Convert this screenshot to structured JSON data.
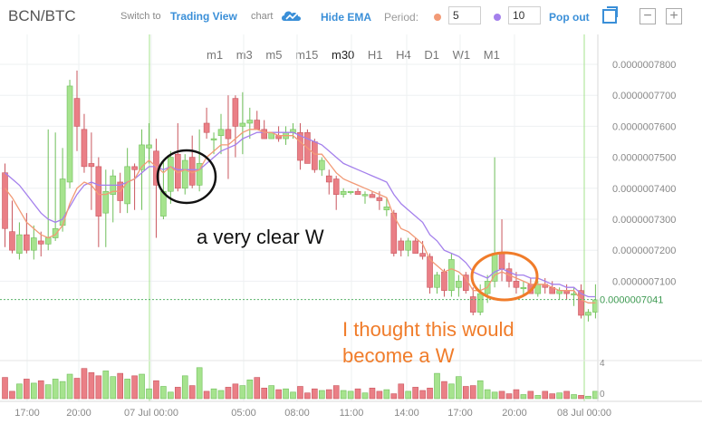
{
  "header": {
    "pair": "BCN/BTC",
    "switch_text": "Switch to",
    "tv_link": "Trading View",
    "tv_suffix": "chart",
    "hide_ema": "Hide EMA",
    "period_label": "Period:",
    "period_short": "5",
    "period_long": "10",
    "pop_out": "Pop out",
    "zoom_out": "−",
    "zoom_in": "+"
  },
  "timeframes": [
    "m1",
    "m3",
    "m5",
    "m15",
    "m30",
    "H1",
    "H4",
    "D1",
    "W1",
    "M1"
  ],
  "active_timeframe": "m30",
  "annotations": {
    "black_note": "a very clear W",
    "orange_note_line1": "I thought this would",
    "orange_note_line2": "become a W"
  },
  "colors": {
    "up": "#a6e38e",
    "down": "#ea7f86",
    "ema_short": "#f29a76",
    "ema_long": "#a480ec",
    "link": "#3a8fd8",
    "annotation_orange": "#f07c2a",
    "current_price_line": "#59b36a"
  },
  "chart_data": {
    "type": "candlestick",
    "y_ticks": [
      "0.0000007800",
      "0.0000007700",
      "0.0000007600",
      "0.0000007500",
      "0.0000007400",
      "0.0000007300",
      "0.0000007200",
      "0.0000007100"
    ],
    "current_price": "0.0000007041",
    "x_ticks": [
      "17:00",
      "20:00",
      "07 Jul 00:00",
      "05:00",
      "08:00",
      "11:00",
      "14:00",
      "17:00",
      "20:00",
      "08 Jul 00:00"
    ],
    "volume_ticks": [
      "4",
      "0"
    ],
    "ylim": [
      6.95e-07,
      7.87e-07
    ],
    "candles": [
      {
        "o": 7450,
        "h": 7480,
        "l": 7210,
        "c": 7270
      },
      {
        "o": 7260,
        "h": 7360,
        "l": 7190,
        "c": 7200
      },
      {
        "o": 7190,
        "h": 7290,
        "l": 7170,
        "c": 7250
      },
      {
        "o": 7250,
        "h": 7320,
        "l": 7190,
        "c": 7200
      },
      {
        "o": 7200,
        "h": 7280,
        "l": 7170,
        "c": 7240
      },
      {
        "o": 7230,
        "h": 7260,
        "l": 7180,
        "c": 7220
      },
      {
        "o": 7220,
        "h": 7590,
        "l": 7200,
        "c": 7240
      },
      {
        "o": 7240,
        "h": 7580,
        "l": 7230,
        "c": 7270
      },
      {
        "o": 7280,
        "h": 7530,
        "l": 7260,
        "c": 7430
      },
      {
        "o": 7420,
        "h": 7750,
        "l": 7400,
        "c": 7730
      },
      {
        "o": 7690,
        "h": 7780,
        "l": 7520,
        "c": 7600
      },
      {
        "o": 7590,
        "h": 7640,
        "l": 7450,
        "c": 7470
      },
      {
        "o": 7480,
        "h": 7580,
        "l": 7330,
        "c": 7470
      },
      {
        "o": 7470,
        "h": 7500,
        "l": 7210,
        "c": 7310
      },
      {
        "o": 7320,
        "h": 7460,
        "l": 7210,
        "c": 7390
      },
      {
        "o": 7380,
        "h": 7460,
        "l": 7290,
        "c": 7440
      },
      {
        "o": 7420,
        "h": 7450,
        "l": 7320,
        "c": 7360
      },
      {
        "o": 7350,
        "h": 7530,
        "l": 7320,
        "c": 7470
      },
      {
        "o": 7470,
        "h": 7480,
        "l": 7330,
        "c": 7460
      },
      {
        "o": 7460,
        "h": 7590,
        "l": 7330,
        "c": 7540
      },
      {
        "o": 7530,
        "h": 7610,
        "l": 7480,
        "c": 7540
      },
      {
        "o": 7520,
        "h": 7560,
        "l": 7240,
        "c": 7410
      },
      {
        "o": 7310,
        "h": 7490,
        "l": 7300,
        "c": 7390
      },
      {
        "o": 7390,
        "h": 7520,
        "l": 7350,
        "c": 7500
      },
      {
        "o": 7510,
        "h": 7610,
        "l": 7390,
        "c": 7400
      },
      {
        "o": 7400,
        "h": 7510,
        "l": 7380,
        "c": 7490
      },
      {
        "o": 7500,
        "h": 7570,
        "l": 7400,
        "c": 7410
      },
      {
        "o": 7410,
        "h": 7590,
        "l": 7390,
        "c": 7480
      },
      {
        "o": 7610,
        "h": 7660,
        "l": 7560,
        "c": 7580
      },
      {
        "o": 7560,
        "h": 7580,
        "l": 7510,
        "c": 7560
      },
      {
        "o": 7570,
        "h": 7640,
        "l": 7510,
        "c": 7590
      },
      {
        "o": 7590,
        "h": 7700,
        "l": 7430,
        "c": 7560
      },
      {
        "o": 7690,
        "h": 7700,
        "l": 7500,
        "c": 7600
      },
      {
        "o": 7600,
        "h": 7710,
        "l": 7510,
        "c": 7610
      },
      {
        "o": 7610,
        "h": 7660,
        "l": 7560,
        "c": 7620
      },
      {
        "o": 7620,
        "h": 7650,
        "l": 7590,
        "c": 7590
      },
      {
        "o": 7590,
        "h": 7620,
        "l": 7560,
        "c": 7560
      },
      {
        "o": 7560,
        "h": 7580,
        "l": 7560,
        "c": 7580
      },
      {
        "o": 7570,
        "h": 7600,
        "l": 7550,
        "c": 7560
      },
      {
        "o": 7560,
        "h": 7600,
        "l": 7540,
        "c": 7580
      },
      {
        "o": 7580,
        "h": 7610,
        "l": 7560,
        "c": 7590
      },
      {
        "o": 7580,
        "h": 7610,
        "l": 7460,
        "c": 7490
      },
      {
        "o": 7580,
        "h": 7590,
        "l": 7480,
        "c": 7480
      },
      {
        "o": 7550,
        "h": 7560,
        "l": 7450,
        "c": 7460
      },
      {
        "o": 7460,
        "h": 7500,
        "l": 7440,
        "c": 7490
      },
      {
        "o": 7440,
        "h": 7460,
        "l": 7380,
        "c": 7420
      },
      {
        "o": 7430,
        "h": 7440,
        "l": 7330,
        "c": 7380
      },
      {
        "o": 7380,
        "h": 7400,
        "l": 7370,
        "c": 7390
      },
      {
        "o": 7390,
        "h": 7390,
        "l": 7380,
        "c": 7390
      },
      {
        "o": 7390,
        "h": 7400,
        "l": 7380,
        "c": 7380
      },
      {
        "o": 7380,
        "h": 7390,
        "l": 7350,
        "c": 7380
      },
      {
        "o": 7380,
        "h": 7390,
        "l": 7370,
        "c": 7370
      },
      {
        "o": 7370,
        "h": 7390,
        "l": 7330,
        "c": 7360
      },
      {
        "o": 7330,
        "h": 7370,
        "l": 7310,
        "c": 7340
      },
      {
        "o": 7320,
        "h": 7330,
        "l": 7180,
        "c": 7190
      },
      {
        "o": 7230,
        "h": 7240,
        "l": 7180,
        "c": 7200
      },
      {
        "o": 7200,
        "h": 7240,
        "l": 7180,
        "c": 7230
      },
      {
        "o": 7230,
        "h": 7240,
        "l": 7190,
        "c": 7190
      },
      {
        "o": 7190,
        "h": 7230,
        "l": 7170,
        "c": 7180
      },
      {
        "o": 7180,
        "h": 7190,
        "l": 7060,
        "c": 7080
      },
      {
        "o": 7080,
        "h": 7130,
        "l": 7060,
        "c": 7120
      },
      {
        "o": 7130,
        "h": 7140,
        "l": 7050,
        "c": 7070
      },
      {
        "o": 7070,
        "h": 7190,
        "l": 7050,
        "c": 7170
      },
      {
        "o": 7080,
        "h": 7120,
        "l": 7050,
        "c": 7100
      },
      {
        "o": 7120,
        "h": 7130,
        "l": 7060,
        "c": 7070
      },
      {
        "o": 7050,
        "h": 7080,
        "l": 6990,
        "c": 7000
      },
      {
        "o": 7000,
        "h": 7090,
        "l": 6990,
        "c": 7060
      },
      {
        "o": 7060,
        "h": 7120,
        "l": 7030,
        "c": 7100
      },
      {
        "o": 7100,
        "h": 7500,
        "l": 7080,
        "c": 7190
      },
      {
        "o": 7190,
        "h": 7300,
        "l": 7100,
        "c": 7140
      },
      {
        "o": 7140,
        "h": 7160,
        "l": 7080,
        "c": 7100
      },
      {
        "o": 7100,
        "h": 7130,
        "l": 7060,
        "c": 7080
      },
      {
        "o": 7080,
        "h": 7100,
        "l": 7050,
        "c": 7080
      },
      {
        "o": 7090,
        "h": 7110,
        "l": 7060,
        "c": 7060
      },
      {
        "o": 7060,
        "h": 7100,
        "l": 7050,
        "c": 7090
      },
      {
        "o": 7090,
        "h": 7110,
        "l": 7060,
        "c": 7080
      },
      {
        "o": 7080,
        "h": 7100,
        "l": 7060,
        "c": 7060
      },
      {
        "o": 7060,
        "h": 7080,
        "l": 7040,
        "c": 7070
      },
      {
        "o": 7070,
        "h": 7090,
        "l": 7040,
        "c": 7060
      },
      {
        "o": 7060,
        "h": 7080,
        "l": 7020,
        "c": 7060
      },
      {
        "o": 7070,
        "h": 7090,
        "l": 6980,
        "c": 6990
      },
      {
        "o": 6990,
        "h": 7010,
        "l": 6970,
        "c": 7000
      },
      {
        "o": 7000,
        "h": 7090,
        "l": 6980,
        "c": 7040
      }
    ],
    "volumes": [
      2.6,
      0.9,
      1.8,
      2.4,
      1.9,
      2.2,
      1.7,
      2.4,
      2.1,
      3.0,
      2.5,
      3.7,
      3.2,
      2.8,
      3.4,
      2.7,
      3.1,
      2.4,
      2.8,
      3.0,
      1.2,
      2.2,
      1.5,
      0.8,
      1.4,
      2.8,
      1.6,
      3.8,
      0.9,
      1.2,
      1.0,
      1.4,
      1.8,
      1.6,
      2.3,
      2.6,
      1.3,
      1.6,
      1.1,
      1.2,
      0.8,
      1.5,
      0.7,
      1.2,
      1.0,
      1.1,
      1.6,
      1.0,
      0.9,
      1.2,
      0.7,
      1.3,
      0.9,
      1.1,
      0.6,
      1.8,
      0.9,
      1.4,
      1.0,
      1.3,
      3.1,
      2.1,
      1.8,
      2.7,
      1.5,
      1.6,
      2.2,
      1.1,
      0.8,
      0.9,
      0.6,
      1.1,
      0.5,
      0.9,
      0.4,
      0.9,
      0.6,
      0.7,
      0.9,
      0.5,
      0.4,
      0.3,
      0.9
    ],
    "ema_short": [
      7400,
      7370,
      7330,
      7290,
      7270,
      7250,
      7240,
      7250,
      7280,
      7350,
      7400,
      7420,
      7410,
      7380,
      7380,
      7390,
      7390,
      7420,
      7430,
      7470,
      7490,
      7470,
      7450,
      7470,
      7450,
      7460,
      7450,
      7460,
      7500,
      7520,
      7540,
      7540,
      7560,
      7580,
      7590,
      7590,
      7580,
      7580,
      7570,
      7570,
      7570,
      7550,
      7530,
      7510,
      7510,
      7480,
      7450,
      7430,
      7420,
      7410,
      7400,
      7390,
      7380,
      7370,
      7310,
      7270,
      7260,
      7240,
      7220,
      7170,
      7150,
      7130,
      7140,
      7130,
      7110,
      7070,
      7070,
      7080,
      7120,
      7130,
      7120,
      7110,
      7100,
      7090,
      7090,
      7090,
      7080,
      7070,
      7070,
      7070,
      7040,
      7030,
      7030
    ],
    "ema_long": [
      7450,
      7430,
      7410,
      7380,
      7350,
      7320,
      7300,
      7290,
      7300,
      7340,
      7380,
      7410,
      7420,
      7410,
      7410,
      7410,
      7410,
      7420,
      7430,
      7450,
      7470,
      7470,
      7460,
      7470,
      7460,
      7460,
      7460,
      7460,
      7480,
      7500,
      7520,
      7530,
      7540,
      7560,
      7570,
      7580,
      7580,
      7580,
      7580,
      7580,
      7580,
      7570,
      7560,
      7550,
      7540,
      7520,
      7500,
      7480,
      7470,
      7460,
      7450,
      7440,
      7430,
      7420,
      7380,
      7350,
      7330,
      7310,
      7290,
      7250,
      7230,
      7200,
      7190,
      7180,
      7160,
      7130,
      7120,
      7110,
      7130,
      7140,
      7130,
      7120,
      7120,
      7110,
      7110,
      7100,
      7090,
      7090,
      7080,
      7080,
      7060,
      7050,
      7050
    ]
  }
}
